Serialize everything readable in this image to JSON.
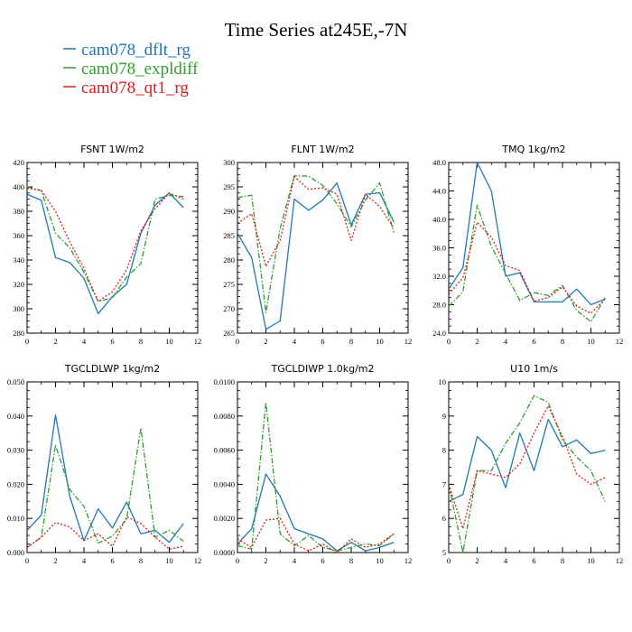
{
  "title": "Time Series at245E,-7N",
  "legend": [
    {
      "name": "cam078_dflt_rg",
      "color": "#1f77b4",
      "dash": "solid"
    },
    {
      "name": "cam078_expldiff",
      "color": "#2ca02c",
      "dash": "dashdot"
    },
    {
      "name": "cam078_qt1_rg",
      "color": "#e31a1c",
      "dash": "dotted"
    }
  ],
  "chart_data": [
    {
      "type": "line",
      "title": "FSNT   1W/m2",
      "x": [
        0,
        1,
        2,
        3,
        4,
        5,
        6,
        7,
        8,
        9,
        10,
        11
      ],
      "xlim": [
        0,
        12
      ],
      "xticks": [
        "0",
        "2",
        "4",
        "6",
        "8",
        "10",
        "12"
      ],
      "ylim": [
        280,
        420
      ],
      "yticks": [
        "280",
        "300",
        "320",
        "340",
        "360",
        "380",
        "400",
        "420"
      ],
      "series": [
        {
          "name": "cam078_dflt_rg",
          "values": [
            394,
            389,
            342,
            338,
            325,
            296,
            310,
            320,
            362,
            385,
            395,
            383
          ]
        },
        {
          "name": "cam078_expldiff",
          "values": [
            400,
            397,
            362,
            350,
            330,
            306,
            309,
            326,
            337,
            390,
            393,
            392
          ]
        },
        {
          "name": "cam078_qt1_rg",
          "values": [
            399,
            397,
            380,
            355,
            333,
            306,
            314,
            332,
            364,
            382,
            395,
            390
          ]
        }
      ]
    },
    {
      "type": "line",
      "title": "FLNT   1W/m2",
      "x": [
        0,
        1,
        2,
        3,
        4,
        5,
        6,
        7,
        8,
        9,
        10,
        11
      ],
      "xlim": [
        0,
        12
      ],
      "xticks": [
        "0",
        "2",
        "4",
        "6",
        "8",
        "10",
        "12"
      ],
      "ylim": [
        265,
        300
      ],
      "yticks": [
        "265",
        "270",
        "275",
        "280",
        "285",
        "290",
        "295",
        "300"
      ],
      "series": [
        {
          "name": "cam078_dflt_rg",
          "values": [
            285.5,
            280.5,
            265.8,
            267.5,
            292.5,
            290.2,
            292.3,
            295.8,
            287.2,
            293.5,
            293.8,
            287.8
          ]
        },
        {
          "name": "cam078_expldiff",
          "values": [
            292.8,
            293.3,
            269.2,
            286.5,
            297.3,
            297.2,
            295.3,
            291.5,
            286.8,
            292.3,
            295.8,
            285.6
          ]
        },
        {
          "name": "cam078_qt1_rg",
          "values": [
            287.5,
            289.5,
            278.7,
            284.0,
            297.1,
            294.5,
            294.8,
            293.5,
            284.0,
            293.5,
            291.0,
            286.5
          ]
        }
      ]
    },
    {
      "type": "line",
      "title": "TMQ   1kg/m2",
      "x": [
        0,
        1,
        2,
        3,
        4,
        5,
        6,
        7,
        8,
        9,
        10,
        11
      ],
      "xlim": [
        0,
        12
      ],
      "xticks": [
        "0",
        "2",
        "4",
        "6",
        "8",
        "10",
        "12"
      ],
      "ylim": [
        24,
        48
      ],
      "yticks": [
        "24.0",
        "28.0",
        "32.0",
        "36.0",
        "40.0",
        "44.0",
        "48.0"
      ],
      "series": [
        {
          "name": "cam078_dflt_rg",
          "values": [
            30.2,
            33.2,
            48.0,
            44.0,
            32.0,
            32.5,
            28.4,
            28.4,
            28.4,
            30.2,
            28.0,
            28.8
          ]
        },
        {
          "name": "cam078_expldiff",
          "values": [
            27.8,
            29.8,
            42.0,
            36.2,
            32.4,
            28.6,
            29.7,
            29.3,
            30.7,
            27.2,
            25.6,
            29.0
          ]
        },
        {
          "name": "cam078_qt1_rg",
          "values": [
            29.5,
            31.8,
            39.6,
            37.5,
            33.5,
            32.8,
            28.5,
            29.0,
            30.5,
            27.8,
            26.8,
            28.8
          ]
        }
      ]
    },
    {
      "type": "line",
      "title": "TGCLDLWP   1kg/m2",
      "x": [
        0,
        1,
        2,
        3,
        4,
        5,
        6,
        7,
        8,
        9,
        10,
        11
      ],
      "xlim": [
        0,
        12
      ],
      "xticks": [
        "0",
        "2",
        "4",
        "6",
        "8",
        "10",
        "12"
      ],
      "ylim": [
        0,
        0.05
      ],
      "yticks": [
        "0.000",
        "0.010",
        "0.020",
        "0.030",
        "0.040",
        "0.050"
      ],
      "series": [
        {
          "name": "cam078_dflt_rg",
          "values": [
            0.0065,
            0.011,
            0.0403,
            0.0165,
            0.0035,
            0.0128,
            0.0072,
            0.0148,
            0.0055,
            0.0065,
            0.003,
            0.0085
          ]
        },
        {
          "name": "cam078_expldiff",
          "values": [
            0.0015,
            0.0045,
            0.0315,
            0.0185,
            0.0135,
            0.0028,
            0.0048,
            0.0098,
            0.0365,
            0.0045,
            0.0065,
            0.0033
          ]
        },
        {
          "name": "cam078_qt1_rg",
          "values": [
            0.0015,
            0.0045,
            0.0088,
            0.0075,
            0.0035,
            0.0055,
            0.0018,
            0.0105,
            0.0085,
            0.0045,
            0.001,
            0.0018
          ]
        }
      ]
    },
    {
      "type": "line",
      "title": "TGCLDIWP   1.0kg/m2",
      "x": [
        0,
        1,
        2,
        3,
        4,
        5,
        6,
        7,
        8,
        9,
        10,
        11
      ],
      "xlim": [
        0,
        12
      ],
      "xticks": [
        "0",
        "2",
        "4",
        "6",
        "8",
        "10",
        "12"
      ],
      "ylim": [
        0,
        0.01
      ],
      "yticks": [
        "0.0000",
        "0.0020",
        "0.0040",
        "0.0060",
        "0.0080",
        "0.0100"
      ],
      "series": [
        {
          "name": "cam078_dflt_rg",
          "values": [
            0.0005,
            0.0014,
            0.0046,
            0.0033,
            0.0014,
            0.0011,
            0.0008,
            0.0001,
            0.0006,
            0.0001,
            0.0003,
            0.0006
          ]
        },
        {
          "name": "cam078_expldiff",
          "values": [
            0.0004,
            0.0002,
            0.0088,
            0.0011,
            0.0004,
            0.001,
            0.0003,
            0.0001,
            0.0003,
            0.0005,
            0.0004,
            0.0011
          ]
        },
        {
          "name": "cam078_qt1_rg",
          "values": [
            0.0008,
            0.0003,
            0.0019,
            0.002,
            0.0005,
            0.0001,
            0.0005,
            0.0,
            0.0008,
            0.0003,
            0.0005,
            0.0011
          ]
        }
      ]
    },
    {
      "type": "line",
      "title": "U10   1m/s",
      "x": [
        0,
        1,
        2,
        3,
        4,
        5,
        6,
        7,
        8,
        9,
        10,
        11
      ],
      "xlim": [
        0,
        12
      ],
      "xticks": [
        "0",
        "2",
        "4",
        "6",
        "8",
        "10",
        "12"
      ],
      "ylim": [
        5,
        10
      ],
      "yticks": [
        "5",
        "6",
        "7",
        "8",
        "9",
        "10"
      ],
      "series": [
        {
          "name": "cam078_dflt_rg",
          "values": [
            6.5,
            6.7,
            8.4,
            8.0,
            6.9,
            8.5,
            7.4,
            8.9,
            8.1,
            8.3,
            7.9,
            8.0
          ]
        },
        {
          "name": "cam078_expldiff",
          "values": [
            7.0,
            5.0,
            7.4,
            7.4,
            8.2,
            8.8,
            9.6,
            9.4,
            8.3,
            7.8,
            7.4,
            6.5
          ]
        },
        {
          "name": "cam078_qt1_rg",
          "values": [
            7.0,
            5.7,
            7.4,
            7.3,
            7.2,
            7.6,
            8.5,
            9.3,
            8.4,
            7.3,
            7.0,
            7.2
          ]
        }
      ]
    }
  ]
}
